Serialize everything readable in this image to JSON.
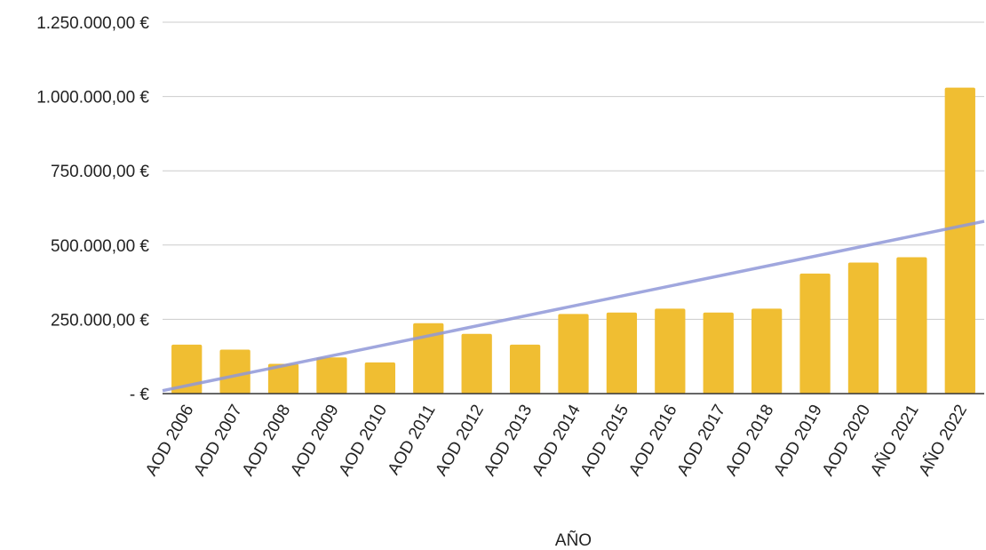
{
  "chart_data": {
    "type": "bar",
    "xlabel": "AÑO",
    "ylabel": "",
    "title": "",
    "ylim": [
      0,
      1250000
    ],
    "y_ticks": [
      {
        "value": 0,
        "label": "-   €"
      },
      {
        "value": 250000,
        "label": "250.000,00 €"
      },
      {
        "value": 500000,
        "label": "500.000,00 €"
      },
      {
        "value": 750000,
        "label": "750.000,00 €"
      },
      {
        "value": 1000000,
        "label": "1.000.000,00 €"
      },
      {
        "value": 1250000,
        "label": "1.250.000,00 €"
      }
    ],
    "categories": [
      "AOD 2006",
      "AOD 2007",
      "AOD 2008",
      "AOD 2009",
      "AOD 2010",
      "AOD 2011",
      "AOD 2012",
      "AOD 2013",
      "AOD 2014",
      "AOD 2015",
      "AOD 2016",
      "AOD 2017",
      "AOD 2018",
      "AOD 2019",
      "AOD 2020",
      "AÑO 2021",
      "AÑO 2022"
    ],
    "values": [
      165000,
      148000,
      100000,
      122000,
      105000,
      237000,
      201000,
      165000,
      268000,
      273000,
      286000,
      273000,
      286000,
      404000,
      441000,
      459000,
      1030000
    ],
    "trendline": {
      "type": "linear",
      "start_value": 10000,
      "end_value": 580000
    },
    "grid": true,
    "legend": "none",
    "colors": {
      "bar": "#f0be32",
      "trend": "#8f98d8",
      "grid": "#cccccc",
      "axis": "#333333"
    }
  }
}
